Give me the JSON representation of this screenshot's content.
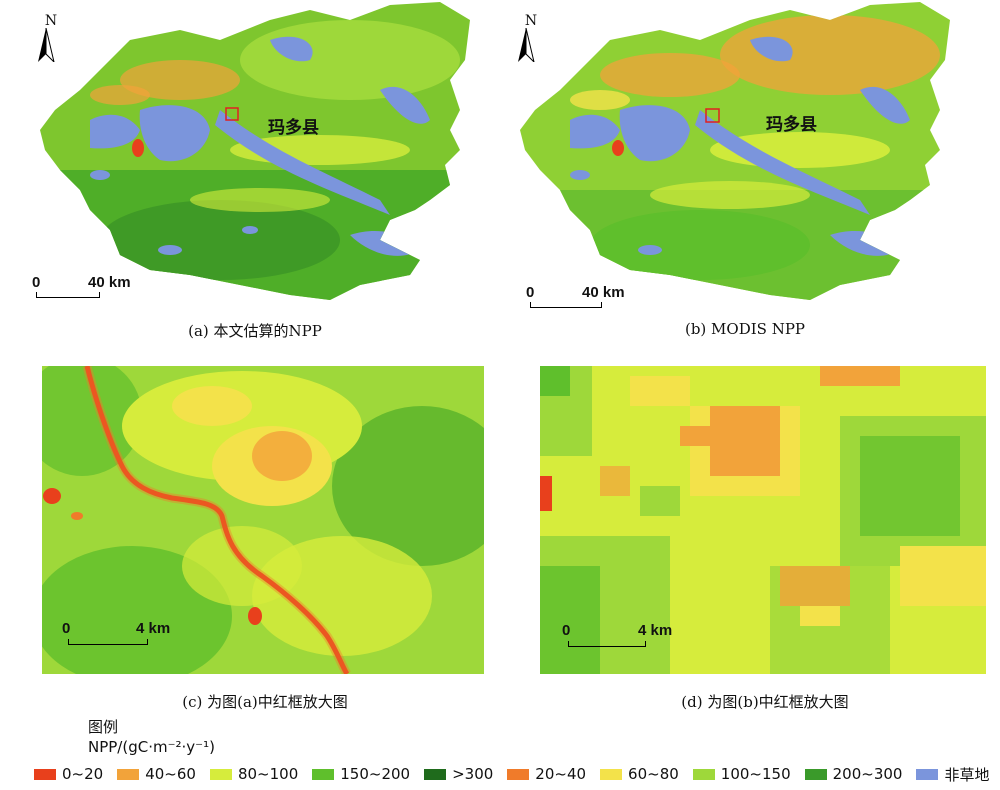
{
  "panels": {
    "a": {
      "caption": "(a) 本文估算的NPP",
      "county": "玛多县",
      "north": "N",
      "scale_start": "0",
      "scale_end": "40 km"
    },
    "b": {
      "caption": "(b) MODIS NPP",
      "county": "玛多县",
      "north": "N",
      "scale_start": "0",
      "scale_end": "40 km"
    },
    "c": {
      "caption": "(c) 为图(a)中红框放大图",
      "scale_start": "0",
      "scale_end": "4  km"
    },
    "d": {
      "caption": "(d) 为图(b)中红框放大图",
      "scale_start": "0",
      "scale_end": "4 km"
    }
  },
  "legend": {
    "title": "图例",
    "unit": "NPP/(gC·m⁻²·y⁻¹)",
    "items": [
      {
        "label": "0~20",
        "color": "#e8401c"
      },
      {
        "label": "40~60",
        "color": "#f2a33a"
      },
      {
        "label": "80~100",
        "color": "#d6ec3c"
      },
      {
        "label": "150~200",
        "color": "#5fbf2c"
      },
      {
        "label": ">300",
        "color": "#1f6b1c"
      },
      {
        "label": "20~40",
        "color": "#f07b2a"
      },
      {
        "label": "60~80",
        "color": "#f3e24a"
      },
      {
        "label": "100~150",
        "color": "#9ed83a"
      },
      {
        "label": "200~300",
        "color": "#3a9a2a"
      },
      {
        "label": "非草地",
        "color": "#7b95dc"
      }
    ]
  },
  "colors": {
    "water": "#7b95dc",
    "frame": "#e02020"
  }
}
